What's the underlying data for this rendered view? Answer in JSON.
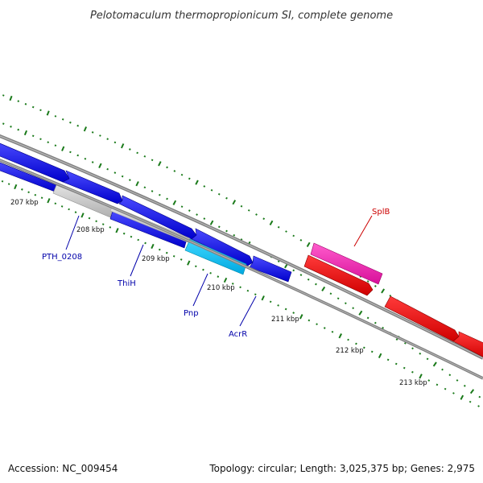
{
  "title": "Pelotomaculum thermopropionicum SI, complete genome",
  "footer": {
    "accession": "Accession: NC_009454",
    "summary": "Topology: circular; Length: 3,025,375 bp; Genes: 2,975"
  },
  "colors": {
    "backbone": "#808080",
    "tick": "#1a7a1a",
    "blue_gene": "#0000ee",
    "cyan_gene": "#00bff0",
    "pink_gene": "#ee1caa",
    "red_gene": "#ee0000",
    "gray_gene": "#c8c8c8",
    "label_blue": "#0000aa",
    "label_red": "#cc0000"
  },
  "kbp_marks": [
    {
      "label": "207 kbp"
    },
    {
      "label": "208 kbp"
    },
    {
      "label": "209 kbp"
    },
    {
      "label": "210 kbp"
    },
    {
      "label": "211 kbp"
    },
    {
      "label": "212 kbp"
    },
    {
      "label": "213 kbp"
    }
  ],
  "gene_labels": [
    {
      "text": "PTH_0208",
      "color": "#0000aa"
    },
    {
      "text": "ThiH",
      "color": "#0000aa"
    },
    {
      "text": "Pnp",
      "color": "#0000aa"
    },
    {
      "text": "AcrR",
      "color": "#0000aa"
    },
    {
      "text": "SplB",
      "color": "#cc0000"
    }
  ]
}
